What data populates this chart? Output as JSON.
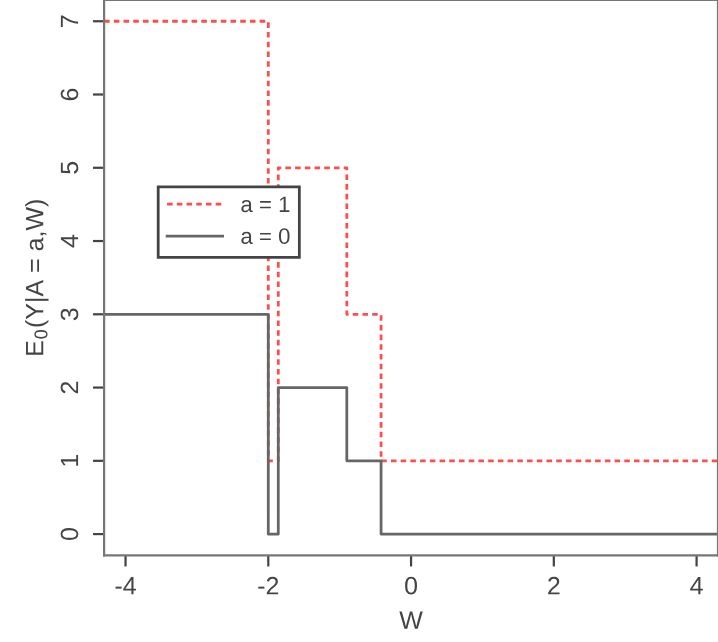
{
  "chart_data": {
    "type": "step",
    "xlabel": "W",
    "ylabel": "E$_{0}$(Y|A = a,W)",
    "x": [
      -4.3,
      -2,
      -1.86,
      -0.9,
      -0.42,
      4.3
    ],
    "series": [
      {
        "name": "a = 1",
        "color": "#ff4d4d",
        "line_style": "dotted",
        "values": [
          7,
          1,
          5,
          3,
          1,
          1
        ]
      },
      {
        "name": "a = 0",
        "color": "#666666",
        "line_style": "solid",
        "values": [
          3,
          0,
          2,
          1,
          0,
          0
        ]
      }
    ],
    "xlim": [
      -4.3,
      4.3
    ],
    "ylim": [
      -0.29,
      7.29
    ],
    "xticks": [
      -4,
      -2,
      0,
      2,
      4
    ],
    "yticks": [
      0,
      1,
      2,
      3,
      4,
      5,
      6,
      7
    ],
    "grid": false,
    "legend": "left"
  }
}
